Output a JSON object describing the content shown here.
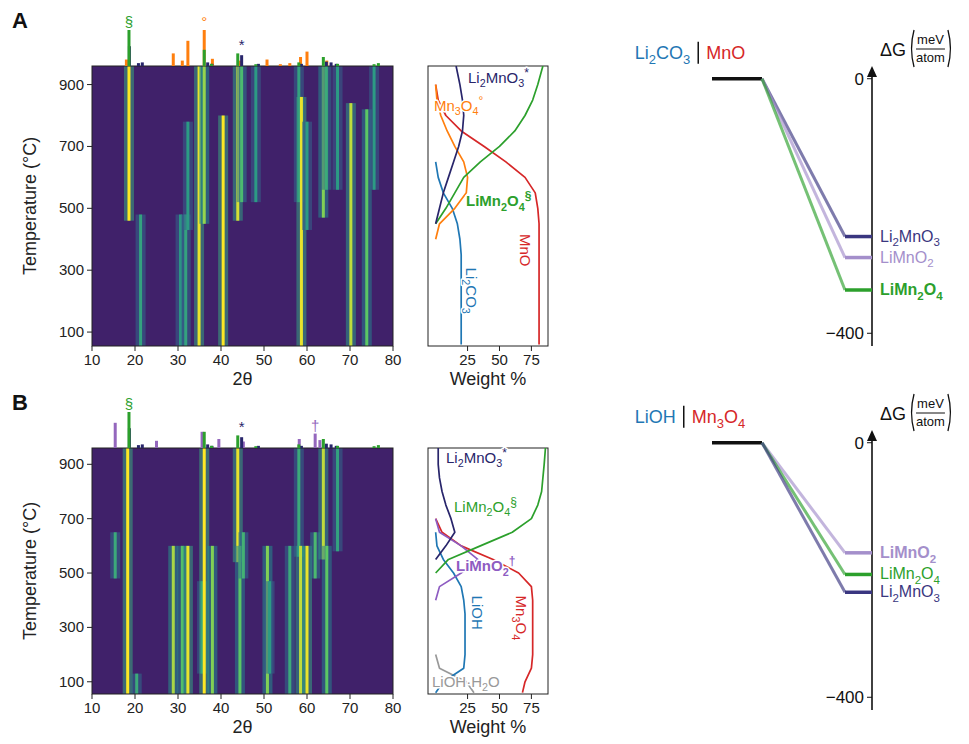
{
  "chart_data": [
    {
      "type": "xrd_heatmap",
      "panel": "A",
      "xlabel": "2θ",
      "ylabel": "Temperature (°C)",
      "xlim": [
        10,
        80
      ],
      "ylim": [
        55,
        960
      ],
      "xticks": [
        10,
        20,
        30,
        40,
        50,
        60,
        70,
        80
      ],
      "yticks": [
        100,
        300,
        500,
        700,
        900
      ],
      "traces": {
        "two_theta": [
          18.6,
          21.3,
          30.6,
          31.8,
          34.9,
          36.1,
          32.3,
          40.5,
          43.9,
          44.8,
          48.1,
          58.1,
          58.7,
          60.0,
          63.8,
          64.5,
          67.1,
          70.2,
          73.9,
          75.6
        ],
        "t_start": [
          460,
          55,
          55,
          55,
          55,
          450,
          430,
          55,
          460,
          520,
          520,
          520,
          55,
          430,
          470,
          560,
          560,
          55,
          55,
          560
        ],
        "t_end": [
          960,
          480,
          480,
          480,
          960,
          960,
          780,
          800,
          960,
          960,
          960,
          960,
          860,
          780,
          960,
          960,
          960,
          840,
          820,
          960
        ],
        "intensity": [
          1.0,
          0.35,
          0.3,
          0.35,
          0.95,
          0.75,
          0.3,
          1.0,
          0.9,
          0.5,
          0.3,
          0.35,
          0.95,
          0.3,
          0.7,
          0.4,
          0.3,
          0.85,
          0.6,
          0.3
        ]
      },
      "reference_patterns": [
        {
          "color": "#ff7f0e",
          "symbol": "°",
          "symbol_at": 36.1,
          "two_theta": [
            18.0,
            28.9,
            31.0,
            32.3,
            36.1,
            38.0,
            44.4,
            50.7,
            53.8,
            56.0,
            58.5,
            60.0,
            64.6
          ],
          "intensity": [
            18,
            35,
            15,
            70,
            100,
            20,
            15,
            18,
            5,
            8,
            25,
            40,
            15
          ]
        },
        {
          "color": "#28256b",
          "symbol": "*",
          "symbol_at": 44.8,
          "two_theta": [
            18.7,
            20.8,
            21.7,
            36.9,
            37.9,
            44.8,
            48.7,
            58.7,
            64.5,
            65.6,
            66.8
          ],
          "intensity": [
            55,
            8,
            10,
            10,
            6,
            30,
            6,
            6,
            12,
            10,
            6
          ]
        },
        {
          "color": "#2ca02c",
          "symbol": "§",
          "symbol_at": 18.6,
          "two_theta": [
            18.6,
            36.1,
            37.8,
            43.9,
            48.1,
            58.1,
            63.8,
            67.1,
            75.6,
            76.6
          ],
          "intensity": [
            100,
            45,
            6,
            35,
            5,
            10,
            25,
            6,
            5,
            8
          ]
        }
      ]
    },
    {
      "type": "line",
      "orientation": "horizontal",
      "xlabel": "Weight %",
      "xlim": [
        -6,
        88
      ],
      "xticks": [
        25,
        50,
        75
      ],
      "ylim": [
        55,
        960
      ],
      "tick_labels": "x",
      "y": [
        60,
        100,
        150,
        200,
        250,
        300,
        350,
        400,
        450,
        500,
        550,
        600,
        650,
        700,
        750,
        800,
        850,
        900,
        960
      ],
      "series": [
        {
          "name": "Li2CO3",
          "color": "#1f77b4",
          "values": [
            20,
            20,
            20,
            20,
            20,
            20,
            20,
            19,
            17,
            13,
            6,
            2,
            0,
            null,
            null,
            null,
            null,
            null,
            null
          ]
        },
        {
          "name": "MnO",
          "color": "#d62728",
          "values": [
            81,
            81,
            81,
            81,
            81,
            81,
            81,
            81,
            81,
            80,
            78,
            70,
            55,
            38,
            20,
            8,
            2,
            0,
            null
          ]
        },
        {
          "name": "Mn3O4",
          "symbol": "°",
          "color": "#ff7f0e",
          "values": [
            null,
            null,
            null,
            null,
            null,
            null,
            null,
            0,
            3,
            15,
            24,
            25,
            22,
            15,
            9,
            4,
            1,
            0,
            null
          ]
        },
        {
          "name": "LiMn2O4",
          "symbol": "§",
          "color": "#2ca02c",
          "values": [
            null,
            null,
            null,
            null,
            null,
            null,
            null,
            null,
            0,
            8,
            15,
            22,
            35,
            50,
            62,
            70,
            76,
            80,
            84
          ]
        },
        {
          "name": "Li2MnO3",
          "symbol": "*",
          "color": "#28256b",
          "values": [
            null,
            null,
            null,
            null,
            null,
            null,
            null,
            null,
            0,
            3,
            6,
            10,
            14,
            18,
            21,
            22,
            21,
            19,
            16
          ]
        }
      ]
    },
    {
      "type": "energy_diagram",
      "reactants": [
        {
          "name": "Li2CO3",
          "color": "#1f77b4"
        },
        {
          "name": "MnO",
          "color": "#d62728"
        }
      ],
      "reactant_energy": 0,
      "ylabel": "ΔG",
      "yunit": {
        "numerator": "meV",
        "denominator": "atom"
      },
      "ylim": [
        -420,
        20
      ],
      "yticks": [
        0,
        {
          "value": -400,
          "label": "−400"
        }
      ],
      "categories": [
        "Li2MnO3",
        "LiMnO2",
        "LiMn2O4"
      ],
      "values": [
        -248,
        -281,
        -332
      ],
      "colors": [
        "#3a3680",
        "#a48fcb",
        "#2ca02c"
      ]
    },
    {
      "type": "xrd_heatmap",
      "panel": "B",
      "xlabel": "2θ",
      "ylabel": "Temperature (°C)",
      "xlim": [
        10,
        80
      ],
      "ylim": [
        55,
        960
      ],
      "xticks": [
        10,
        20,
        30,
        40,
        50,
        60,
        70,
        80
      ],
      "yticks": [
        100,
        300,
        500,
        700,
        900
      ],
      "traces": {
        "two_theta": [
          15.4,
          18.3,
          20.4,
          28.9,
          31.0,
          32.3,
          35.6,
          36.1,
          38.0,
          43.9,
          44.4,
          45.2,
          50.8,
          51.3,
          56.0,
          58.1,
          58.5,
          60.0,
          61.9,
          63.8,
          64.6,
          67.1
        ],
        "t_start": [
          480,
          55,
          55,
          55,
          55,
          55,
          130,
          55,
          55,
          540,
          55,
          480,
          55,
          130,
          55,
          560,
          55,
          55,
          480,
          550,
          55,
          580
        ],
        "t_end": [
          650,
          960,
          130,
          600,
          600,
          600,
          470,
          960,
          600,
          960,
          600,
          650,
          600,
          470,
          600,
          960,
          600,
          600,
          650,
          960,
          600,
          960
        ],
        "intensity": [
          0.4,
          1.0,
          0.4,
          0.8,
          0.55,
          0.95,
          0.35,
          1.0,
          0.7,
          0.95,
          0.6,
          0.45,
          0.7,
          0.3,
          0.4,
          0.4,
          0.85,
          0.95,
          0.5,
          0.85,
          0.6,
          0.35
        ]
      },
      "reference_patterns": [
        {
          "color": "#9467bd",
          "symbol": "†",
          "symbol_at": 61.9,
          "two_theta": [
            15.4,
            25.0,
            35.6,
            39.5,
            45.2,
            58.2,
            61.9,
            63.0
          ],
          "intensity": [
            70,
            20,
            45,
            25,
            18,
            25,
            40,
            22
          ]
        },
        {
          "color": "#28256b",
          "symbol": "*",
          "symbol_at": 44.8,
          "two_theta": [
            18.7,
            20.8,
            21.7,
            36.9,
            37.9,
            44.8,
            48.7,
            58.7,
            64.5,
            65.6,
            66.8
          ],
          "intensity": [
            55,
            8,
            10,
            10,
            6,
            30,
            6,
            6,
            12,
            10,
            6
          ]
        },
        {
          "color": "#2ca02c",
          "symbol": "§",
          "symbol_at": 18.6,
          "two_theta": [
            18.6,
            36.1,
            37.8,
            43.9,
            48.1,
            58.1,
            63.8,
            67.1,
            75.6,
            76.6
          ],
          "intensity": [
            100,
            45,
            6,
            35,
            5,
            10,
            25,
            6,
            5,
            8
          ]
        }
      ]
    },
    {
      "type": "line",
      "orientation": "horizontal",
      "xlabel": "Weight %",
      "xlim": [
        -6,
        88
      ],
      "xticks": [
        25,
        50,
        75
      ],
      "ylim": [
        55,
        960
      ],
      "tick_labels": "x",
      "y": [
        60,
        100,
        150,
        200,
        250,
        300,
        350,
        400,
        450,
        500,
        550,
        600,
        650,
        700,
        750,
        800,
        850,
        900,
        960
      ],
      "series": [
        {
          "name": "LiOH·H2O",
          "color": "#999999",
          "values": [
            30,
            24,
            3,
            0,
            null,
            null,
            null,
            null,
            null,
            null,
            null,
            null,
            null,
            null,
            null,
            null,
            null,
            null,
            null
          ]
        },
        {
          "name": "LiOH",
          "color": "#1f77b4",
          "values": [
            0,
            6,
            22,
            23,
            23,
            23,
            23,
            22,
            20,
            14,
            6,
            1,
            0,
            null,
            null,
            null,
            null,
            null,
            null
          ]
        },
        {
          "name": "Mn3O4",
          "color": "#d62728",
          "values": [
            68,
            70,
            75,
            76,
            76,
            76,
            76,
            76,
            75,
            65,
            45,
            20,
            5,
            0,
            null,
            null,
            null,
            null,
            null
          ]
        },
        {
          "name": "LiMnO2",
          "symbol": "†",
          "color": "#8e5cc2",
          "values": [
            null,
            null,
            null,
            null,
            null,
            null,
            null,
            0,
            3,
            20,
            33,
            20,
            3,
            0,
            null,
            null,
            null,
            null,
            null
          ]
        },
        {
          "name": "Li2MnO3",
          "symbol": "*",
          "color": "#28256b",
          "values": [
            null,
            null,
            null,
            null,
            null,
            null,
            null,
            null,
            null,
            null,
            0,
            8,
            15,
            12,
            8,
            5,
            3,
            2,
            2
          ]
        },
        {
          "name": "LiMn2O4",
          "symbol": "§",
          "color": "#2ca02c",
          "values": [
            null,
            null,
            null,
            null,
            null,
            null,
            null,
            null,
            null,
            0,
            10,
            35,
            60,
            75,
            80,
            83,
            84,
            85,
            86
          ]
        }
      ]
    },
    {
      "type": "energy_diagram",
      "reactants": [
        {
          "name": "LiOH",
          "color": "#1f77b4"
        },
        {
          "name": "Mn3O4",
          "color": "#d62728"
        }
      ],
      "reactant_energy": 0,
      "ylabel": "ΔG",
      "yunit": {
        "numerator": "meV",
        "denominator": "atom"
      },
      "ylim": [
        -420,
        20
      ],
      "yticks": [
        0,
        {
          "value": -400,
          "label": "−400"
        }
      ],
      "categories": [
        "LiMnO2",
        "LiMn2O4",
        "Li2MnO3"
      ],
      "values": [
        -173,
        -207,
        -235
      ],
      "colors": [
        "#a48fcb",
        "#2ca02c",
        "#3a3680"
      ]
    }
  ]
}
